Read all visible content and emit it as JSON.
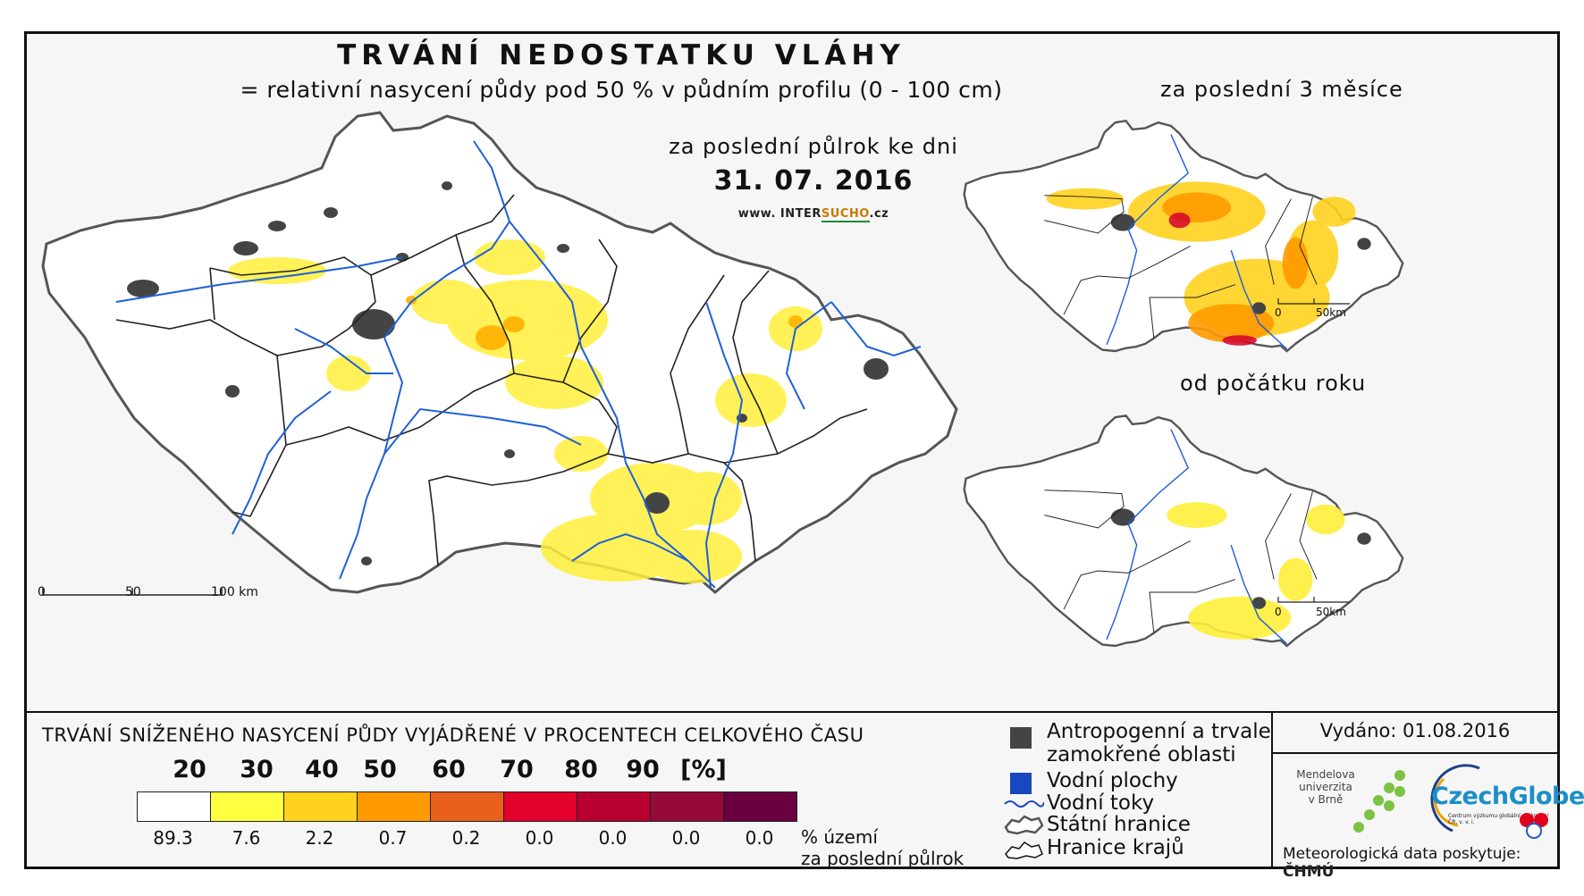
{
  "header": {
    "title": "TRVÁNÍ NEDOSTATKU VLÁHY",
    "subtitle": "= relativní nasycení půdy pod 50 % v půdním profilu (0 - 100 cm)",
    "period_label": "za poslední půlrok ke dni",
    "date": "31. 07. 2016",
    "url_prefix": "www. INTER",
    "url_brand": "SUCHO",
    "url_suffix": ".cz"
  },
  "insets": {
    "top_label": "za poslední 3 měsíce",
    "bottom_label": "od počátku roku",
    "scale_0": "0",
    "scale_50": "50km"
  },
  "main_scale": {
    "s0": "0",
    "s50": "50",
    "s100": "100 km"
  },
  "legend": {
    "title": "TRVÁNÍ SNÍŽENÉHO NASYCENÍ PŮDY VYJÁDŘENÉ V PROCENTECH CELKOVÉHO ČASU",
    "thresholds": [
      "20",
      "30",
      "40",
      "50",
      "60",
      "70",
      "80",
      "90",
      "[%]"
    ],
    "colors": [
      "#ffffff",
      "#ffff40",
      "#ffd21e",
      "#ff9a00",
      "#e8601c",
      "#e3002a",
      "#b8002e",
      "#960a3a",
      "#6a0040"
    ],
    "percentages": [
      "89.3",
      "7.6",
      "2.2",
      "0.7",
      "0.2",
      "0.0",
      "0.0",
      "0.0",
      "0.0"
    ],
    "pct_unit_line1": "% území",
    "pct_unit_line2": "za poslední půlrok"
  },
  "symbols": {
    "urban_line1": "Antropogenní a trvale",
    "urban_line2": "zamokřené oblasti",
    "water": "Vodní plochy",
    "rivers": "Vodní toky",
    "border": "Státní hranice",
    "regions": "Hranice krajů"
  },
  "issuer": {
    "issued": "Vydáno: 01.08.2016",
    "mendel_1": "Mendelova",
    "mendel_2": "univerzita",
    "mendel_3": "v Brně",
    "czechglobe": "CzechGlobe",
    "czechglobe_sub": "Centrum výzkumu globální změny AV ČR, v. v. i.",
    "met_label": "Meteorologická data poskytuje:",
    "met_provider": "ČHMÚ"
  }
}
